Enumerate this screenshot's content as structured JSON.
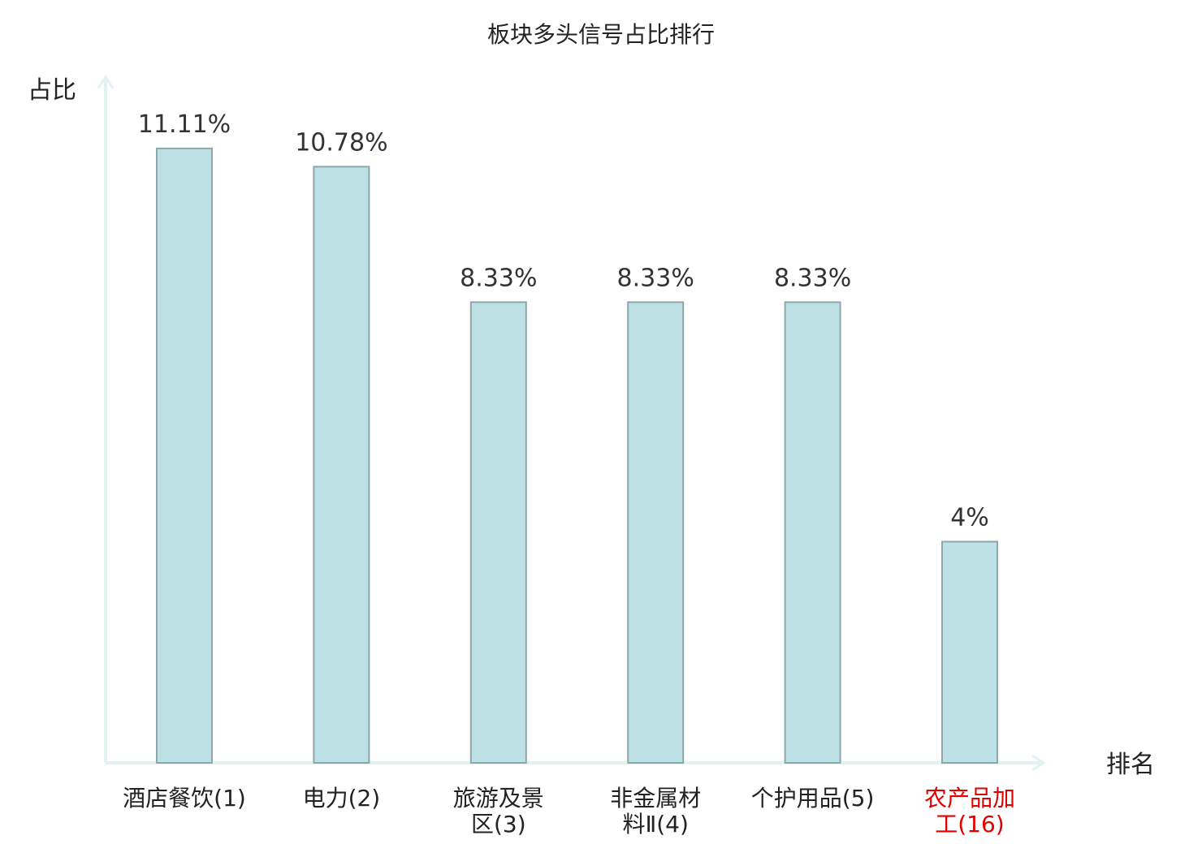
{
  "chart_data": {
    "type": "bar",
    "title": "板块多头信号占比排行",
    "ylabel": "占比",
    "xlabel": "排名",
    "ylim": [
      0,
      12.4
    ],
    "grid": false,
    "categories": [
      {
        "lines": [
          "酒店餐饮(1)"
        ],
        "highlight": false
      },
      {
        "lines": [
          "电力(2)"
        ],
        "highlight": false
      },
      {
        "lines": [
          "旅游及景",
          "区(3)"
        ],
        "highlight": false
      },
      {
        "lines": [
          "非金属材",
          "料Ⅱ(4)"
        ],
        "highlight": false
      },
      {
        "lines": [
          "个护用品(5)"
        ],
        "highlight": false
      },
      {
        "lines": [
          "农产品加",
          "工(16)"
        ],
        "highlight": true
      }
    ],
    "values": [
      11.11,
      10.78,
      8.33,
      8.33,
      8.33,
      4
    ],
    "value_labels": [
      "11.11%",
      "10.78%",
      "8.33%",
      "8.33%",
      "8.33%",
      "4%"
    ],
    "colors": {
      "bar_fill": "#bde1e4",
      "bar_stroke": "#8fa7ab",
      "axis": "#e0f3f1",
      "highlight_text": "#e00000",
      "text": "#222222"
    }
  }
}
